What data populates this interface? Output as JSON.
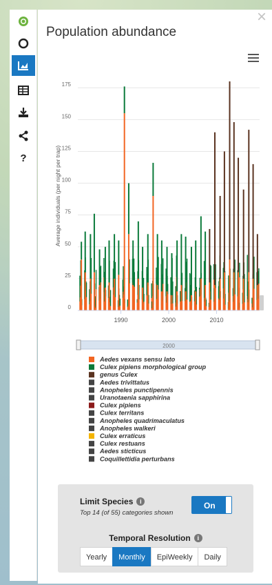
{
  "toolbar": {
    "tools": [
      {
        "icon": "logo-icon",
        "glyph": "",
        "active": false
      },
      {
        "icon": "circle-icon",
        "glyph": "",
        "active": false
      },
      {
        "icon": "chart-icon",
        "glyph": "",
        "active": true
      },
      {
        "icon": "table-icon",
        "glyph": "",
        "active": false
      },
      {
        "icon": "download-icon",
        "glyph": "",
        "active": false
      },
      {
        "icon": "share-icon",
        "glyph": "",
        "active": false
      },
      {
        "icon": "help-icon",
        "glyph": "?",
        "active": false
      }
    ]
  },
  "panel": {
    "title": "Population abundance",
    "close_glyph": "×"
  },
  "controls": {
    "limit_label": "Limit Species",
    "limit_sub": "Top 14 (of 55) categories shown",
    "toggle_label": "On",
    "temporal_label": "Temporal Resolution",
    "info_glyph": "i",
    "resolutions": [
      {
        "label": "Yearly",
        "selected": false
      },
      {
        "label": "Monthly",
        "selected": true
      },
      {
        "label": "EpiWeekly",
        "selected": false
      },
      {
        "label": "Daily",
        "selected": false
      }
    ]
  },
  "chart_data": {
    "type": "bar",
    "ylabel": "Average individuals (per night per trap)",
    "ylim": [
      0,
      180
    ],
    "yticks": [
      "0",
      "25",
      "50",
      "75",
      "100",
      "125",
      "150",
      "175"
    ],
    "xlim": [
      1981,
      2019
    ],
    "xticks": [
      "1990",
      "2000",
      "2010"
    ],
    "navigator_label": "2000",
    "grid": true,
    "stacked": true,
    "legend_position": "bottom",
    "series": [
      {
        "name": "Aedes vexans sensu lato",
        "color": "#f26522"
      },
      {
        "name": "Culex pipiens morphological group",
        "color": "#0a7a3a"
      },
      {
        "name": "genus Culex",
        "color": "#5a3320"
      },
      {
        "name": "Aedes trivittatus",
        "color": "#444444"
      },
      {
        "name": "Anopheles punctipennis",
        "color": "#444444"
      },
      {
        "name": "Uranotaenia sapphirina",
        "color": "#444444"
      },
      {
        "name": "Culex pipiens",
        "color": "#8b1a1a"
      },
      {
        "name": "Culex territans",
        "color": "#444444"
      },
      {
        "name": "Anopheles quadrimaculatus",
        "color": "#444444"
      },
      {
        "name": "Anopheles walkeri",
        "color": "#444444"
      },
      {
        "name": "Culex erraticus",
        "color": "#f4b400"
      },
      {
        "name": "Culex restuans",
        "color": "#444444"
      },
      {
        "name": "Aedes sticticus",
        "color": "#444444"
      },
      {
        "name": "Coquillettidia perturbans",
        "color": "#444444"
      }
    ],
    "spikes": [
      {
        "x": 1981.6,
        "total": 54,
        "orange": 40
      },
      {
        "x": 1982.4,
        "total": 62,
        "orange": 30
      },
      {
        "x": 1983.5,
        "total": 60,
        "orange": 25
      },
      {
        "x": 1984.3,
        "total": 76,
        "orange": 30
      },
      {
        "x": 1985.4,
        "total": 48,
        "orange": 20
      },
      {
        "x": 1986.6,
        "total": 50,
        "orange": 18
      },
      {
        "x": 1987.4,
        "total": 55,
        "orange": 22
      },
      {
        "x": 1988.5,
        "total": 60,
        "orange": 25
      },
      {
        "x": 1989.4,
        "total": 55,
        "orange": 28
      },
      {
        "x": 1990.6,
        "total": 176,
        "orange": 155
      },
      {
        "x": 1991.5,
        "total": 100,
        "orange": 60
      },
      {
        "x": 1992.4,
        "total": 55,
        "orange": 20
      },
      {
        "x": 1993.5,
        "total": 70,
        "orange": 25
      },
      {
        "x": 1994.4,
        "total": 50,
        "orange": 18
      },
      {
        "x": 1995.5,
        "total": 60,
        "orange": 22
      },
      {
        "x": 1996.6,
        "total": 116,
        "orange": 90
      },
      {
        "x": 1997.5,
        "total": 60,
        "orange": 20
      },
      {
        "x": 1998.4,
        "total": 55,
        "orange": 15
      },
      {
        "x": 1999.5,
        "total": 50,
        "orange": 15
      },
      {
        "x": 2000.5,
        "total": 45,
        "orange": 12
      },
      {
        "x": 2001.6,
        "total": 55,
        "orange": 15
      },
      {
        "x": 2002.5,
        "total": 60,
        "orange": 20
      },
      {
        "x": 2003.4,
        "total": 58,
        "orange": 15
      },
      {
        "x": 2004.6,
        "total": 50,
        "orange": 12
      },
      {
        "x": 2005.5,
        "total": 55,
        "orange": 15
      },
      {
        "x": 2006.6,
        "total": 74,
        "orange": 25
      },
      {
        "x": 2007.5,
        "total": 62,
        "orange": 20
      },
      {
        "x": 2008.4,
        "total": 64,
        "orange": 22
      },
      {
        "x": 2009.5,
        "total": 140,
        "orange": 20
      },
      {
        "x": 2010.6,
        "total": 90,
        "orange": 25
      },
      {
        "x": 2011.5,
        "total": 125,
        "orange": 30
      },
      {
        "x": 2012.6,
        "total": 180,
        "orange": 40
      },
      {
        "x": 2013.5,
        "total": 148,
        "orange": 30
      },
      {
        "x": 2014.4,
        "total": 120,
        "orange": 30
      },
      {
        "x": 2015.5,
        "total": 95,
        "orange": 25
      },
      {
        "x": 2016.6,
        "total": 142,
        "orange": 30
      },
      {
        "x": 2017.5,
        "total": 115,
        "orange": 25
      },
      {
        "x": 2018.4,
        "total": 60,
        "orange": 20
      }
    ]
  }
}
